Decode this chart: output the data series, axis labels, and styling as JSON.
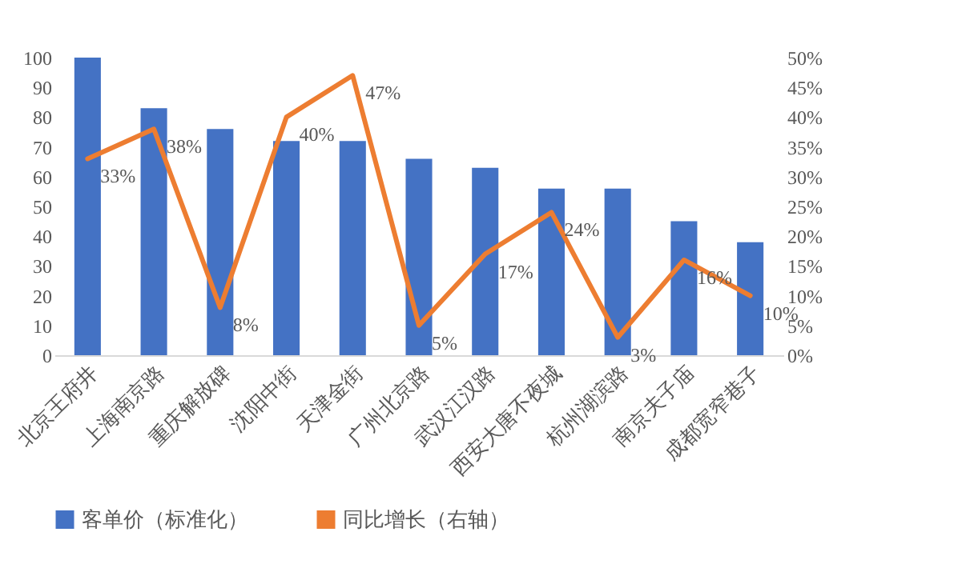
{
  "chart_data": {
    "type": "bar",
    "categories": [
      "北京王府井",
      "上海南京路",
      "重庆解放碑",
      "沈阳中街",
      "天津金街",
      "广州北京路",
      "武汉江汉路",
      "西安大唐不夜城",
      "杭州湖滨路",
      "南京夫子庙",
      "成都宽窄巷子"
    ],
    "series": [
      {
        "name": "客单价（标准化）",
        "color": "#4472c4",
        "values": [
          100,
          83,
          76,
          72,
          72,
          66,
          63,
          56,
          56,
          45,
          38
        ]
      },
      {
        "name": "同比增长（右轴）",
        "color": "#ed7d31",
        "type": "line",
        "axis": "y2",
        "values": [
          33,
          38,
          8,
          40,
          47,
          5,
          17,
          24,
          3,
          16,
          10
        ],
        "value_labels": [
          "33%",
          "38%",
          "8%",
          "40%",
          "47%",
          "5%",
          "17%",
          "24%",
          "3%",
          "16%",
          "10%"
        ]
      }
    ],
    "ylim": [
      0,
      100
    ],
    "yticks": [
      0,
      10,
      20,
      30,
      40,
      50,
      60,
      70,
      80,
      90,
      100
    ],
    "y2lim": [
      0,
      50
    ],
    "y2ticks": [
      {
        "value": 0,
        "label": "0%"
      },
      {
        "value": 5,
        "label": "5%"
      },
      {
        "value": 10,
        "label": "10%"
      },
      {
        "value": 15,
        "label": "15%"
      },
      {
        "value": 20,
        "label": "20%"
      },
      {
        "value": 25,
        "label": "25%"
      },
      {
        "value": 30,
        "label": "30%"
      },
      {
        "value": 35,
        "label": "35%"
      },
      {
        "value": 40,
        "label": "40%"
      },
      {
        "value": 45,
        "label": "45%"
      },
      {
        "value": 50,
        "label": "50%"
      }
    ],
    "legend": "bottom",
    "grid": false
  }
}
